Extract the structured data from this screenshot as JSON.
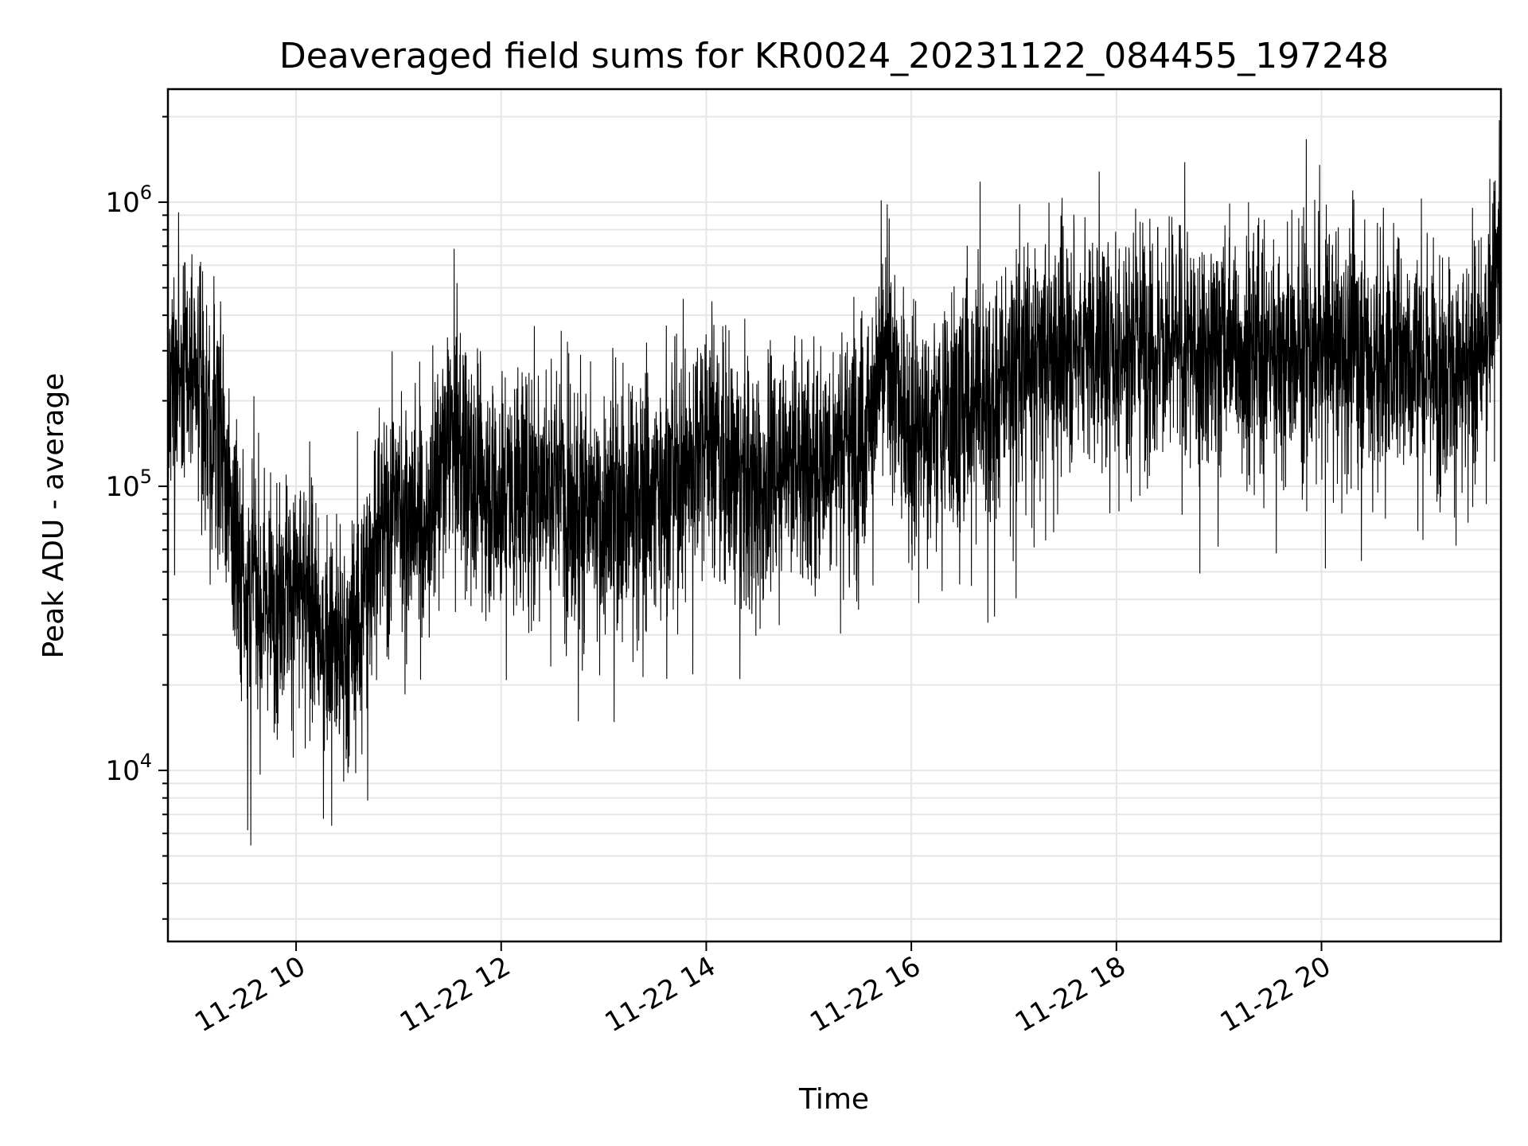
{
  "chart_data": {
    "type": "line",
    "title": "Deaveraged field sums for KR0024_20231122_084455_197248",
    "xlabel": "Time",
    "ylabel": "Peak ADU - average",
    "yscale": "log",
    "xlim": [
      "2023-11-22T08:45",
      "2023-11-22T21:45"
    ],
    "ylim": [
      2500,
      2500000
    ],
    "grid": true,
    "x_ticks": [
      {
        "value": "2023-11-22T10:00",
        "label": "11-22 10"
      },
      {
        "value": "2023-11-22T12:00",
        "label": "11-22 12"
      },
      {
        "value": "2023-11-22T14:00",
        "label": "11-22 14"
      },
      {
        "value": "2023-11-22T16:00",
        "label": "11-22 16"
      },
      {
        "value": "2023-11-22T18:00",
        "label": "11-22 18"
      },
      {
        "value": "2023-11-22T20:00",
        "label": "11-22 20"
      }
    ],
    "y_ticks": [
      {
        "value": 10000,
        "base": "10",
        "exp": "4"
      },
      {
        "value": 100000,
        "base": "10",
        "exp": "5"
      },
      {
        "value": 1000000,
        "base": "10",
        "exp": "6"
      }
    ],
    "series": [
      {
        "color": "#000000",
        "x": [
          "2023-11-22T08:45",
          "2023-11-22T09:00",
          "2023-11-22T09:15",
          "2023-11-22T09:30",
          "2023-11-22T09:45",
          "2023-11-22T10:00",
          "2023-11-22T10:15",
          "2023-11-22T10:30",
          "2023-11-22T10:45",
          "2023-11-22T11:00",
          "2023-11-22T11:15",
          "2023-11-22T11:30",
          "2023-11-22T11:45",
          "2023-11-22T12:00",
          "2023-11-22T12:15",
          "2023-11-22T12:30",
          "2023-11-22T12:45",
          "2023-11-22T13:00",
          "2023-11-22T13:15",
          "2023-11-22T13:30",
          "2023-11-22T13:45",
          "2023-11-22T14:00",
          "2023-11-22T14:15",
          "2023-11-22T14:30",
          "2023-11-22T14:45",
          "2023-11-22T15:00",
          "2023-11-22T15:15",
          "2023-11-22T15:30",
          "2023-11-22T15:45",
          "2023-11-22T16:00",
          "2023-11-22T16:15",
          "2023-11-22T16:30",
          "2023-11-22T16:45",
          "2023-11-22T17:00",
          "2023-11-22T17:15",
          "2023-11-22T17:30",
          "2023-11-22T17:45",
          "2023-11-22T18:00",
          "2023-11-22T18:15",
          "2023-11-22T18:30",
          "2023-11-22T18:45",
          "2023-11-22T19:00",
          "2023-11-22T19:15",
          "2023-11-22T19:30",
          "2023-11-22T19:45",
          "2023-11-22T20:00",
          "2023-11-22T20:15",
          "2023-11-22T20:30",
          "2023-11-22T20:45",
          "2023-11-22T21:00",
          "2023-11-22T21:15",
          "2023-11-22T21:30",
          "2023-11-22T21:45"
        ],
        "y": [
          200000,
          300000,
          150000,
          45000,
          40000,
          45000,
          30000,
          25000,
          60000,
          90000,
          70000,
          150000,
          110000,
          90000,
          100000,
          110000,
          85000,
          75000,
          90000,
          95000,
          110000,
          160000,
          110000,
          100000,
          130000,
          120000,
          140000,
          150000,
          280000,
          150000,
          170000,
          200000,
          210000,
          260000,
          290000,
          300000,
          330000,
          300000,
          330000,
          310000,
          290000,
          320000,
          300000,
          300000,
          290000,
          310000,
          330000,
          270000,
          300000,
          280000,
          250000,
          240000,
          700000
        ]
      }
    ]
  }
}
